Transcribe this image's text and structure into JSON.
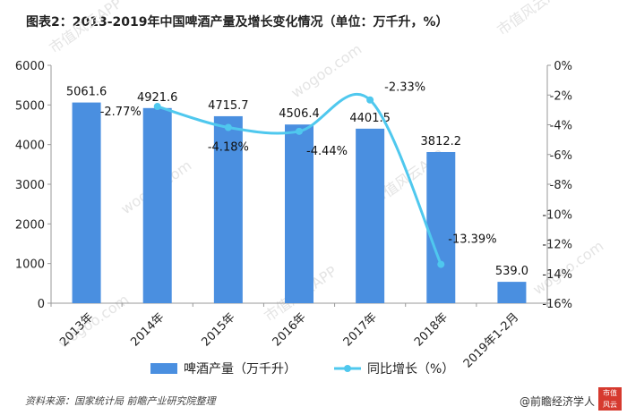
{
  "title": "图表2：2013-2019年中国啤酒产量及增长变化情况（单位：万千升，%）",
  "chart_data": {
    "type": "bar",
    "categories": [
      "2013年",
      "2014年",
      "2015年",
      "2016年",
      "2017年",
      "2018年",
      "2019年1-2月"
    ],
    "series": [
      {
        "name": "啤酒产量（万千升）",
        "type": "bar",
        "axis": "left",
        "values": [
          5061.6,
          4921.6,
          4715.7,
          4506.4,
          4401.5,
          3812.2,
          539.0
        ],
        "labels": [
          "5061.6",
          "4921.6",
          "4715.7",
          "4506.4",
          "4401.5",
          "3812.2",
          "539.0"
        ]
      },
      {
        "name": "同比增长（%）",
        "type": "line",
        "axis": "right",
        "values": [
          null,
          -2.77,
          -4.18,
          -4.44,
          -2.33,
          -13.39,
          null
        ],
        "labels": [
          "",
          "-2.77%",
          "-4.18%",
          "-4.44%",
          "-2.33%",
          "-13.39%",
          ""
        ]
      }
    ],
    "y_left": {
      "min": 0,
      "max": 6000,
      "ticks": [
        "0",
        "1000",
        "2000",
        "3000",
        "4000",
        "5000",
        "6000"
      ]
    },
    "y_right": {
      "min": -16,
      "max": 0,
      "ticks": [
        "-16%",
        "-14%",
        "-12%",
        "-10%",
        "-8%",
        "-6%",
        "-4%",
        "-2%",
        "0%"
      ]
    },
    "legend_position": "bottom",
    "colors": {
      "bar": "#4a8fe0",
      "line": "#4fc8ee",
      "axis": "#999999"
    }
  },
  "watermark": {
    "text_1": "市值风云APP",
    "text_2": "wogoo.com"
  },
  "footer": {
    "source": "资料来源：国家统计局 前瞻产业研究院整理",
    "brand": "@前瞻经济学人",
    "brand_logo_text": "市值 风云"
  }
}
